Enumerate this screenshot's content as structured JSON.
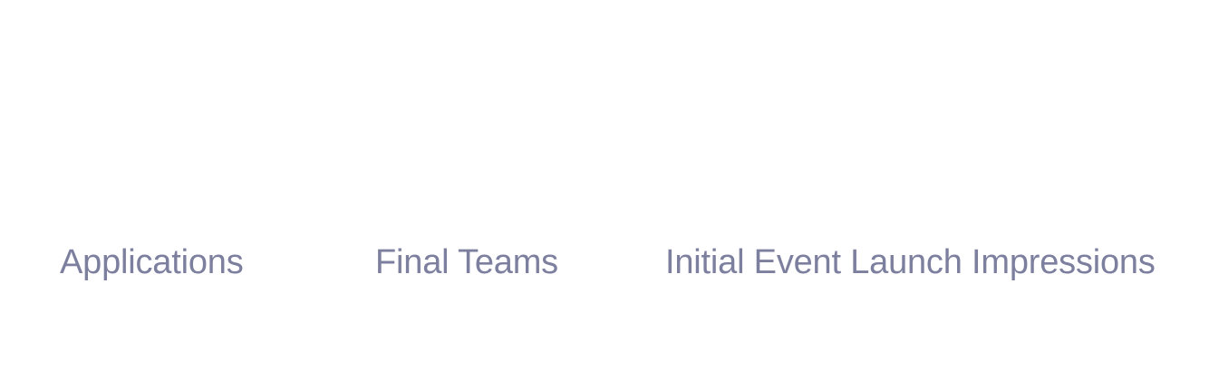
{
  "stats": {
    "items": [
      {
        "label": "Applications"
      },
      {
        "label": "Final Teams"
      },
      {
        "label": "Initial Event Launch Impressions"
      }
    ]
  },
  "colors": {
    "label_text": "#7d7f9e",
    "background": "#ffffff"
  }
}
